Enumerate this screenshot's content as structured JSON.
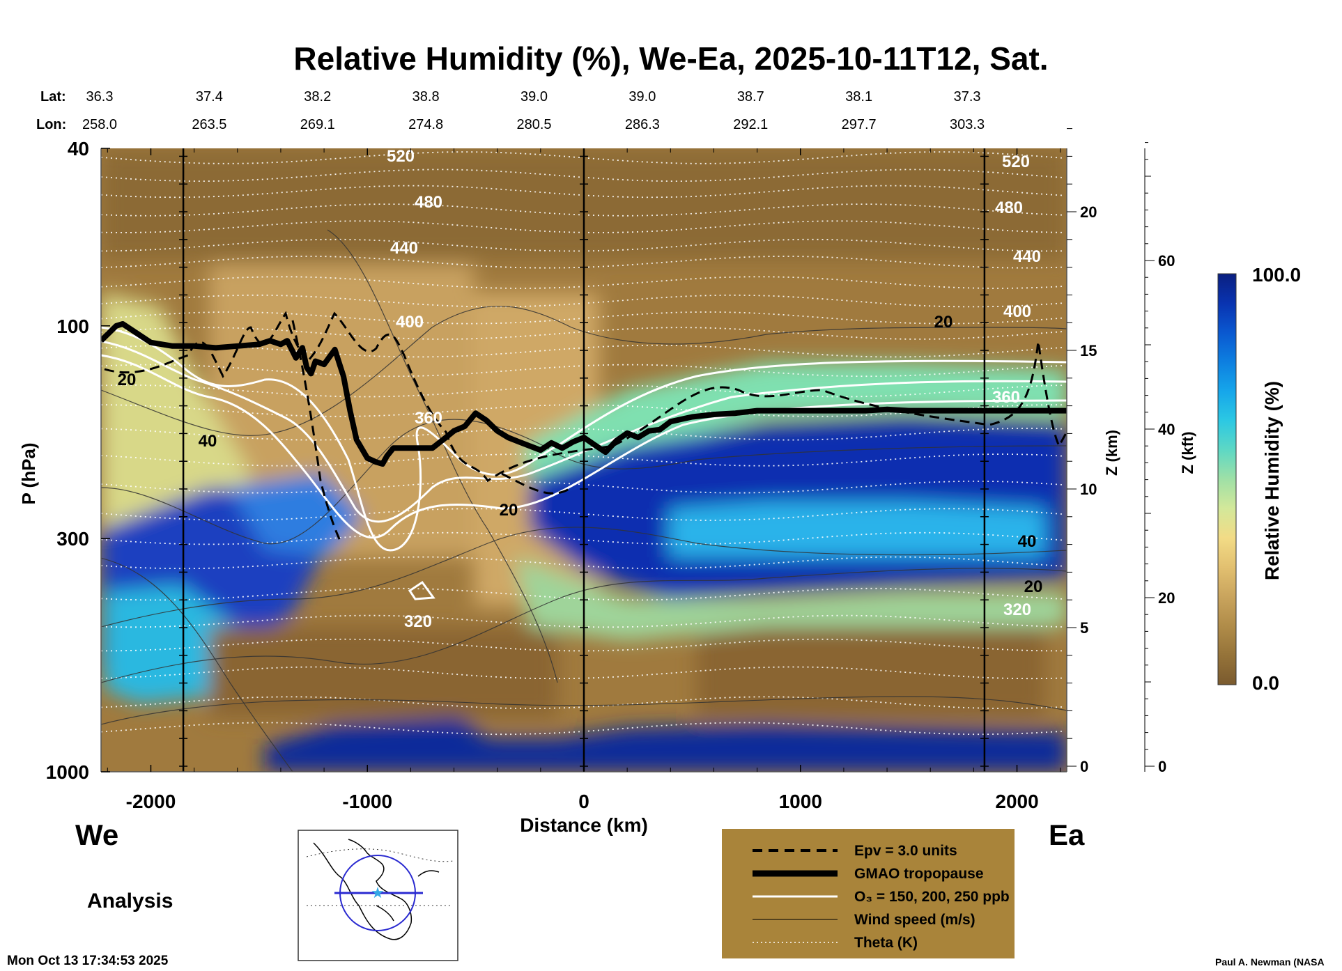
{
  "chart_data": {
    "type": "heatmap",
    "title": "Relative Humidity (%), We-Ea, 2025-10-11T12, Sat.",
    "xlabel": "Distance (km)",
    "ylabel": "P (hPa)",
    "y2label": "Z (km)",
    "y3label": "Z (kft)",
    "xlim": [
      -2230,
      2230
    ],
    "ylim_pressure": [
      1000,
      40
    ],
    "x_ticks": [
      -2000,
      -1000,
      0,
      1000,
      2000
    ],
    "x_tick_labels": [
      "-2000",
      "-1000",
      "0",
      "1000",
      "2000"
    ],
    "p_ticks": [
      1000,
      300,
      100,
      40
    ],
    "p_tick_labels": [
      "1000",
      "300",
      "100",
      "40"
    ],
    "zkm_ticks": [
      0,
      5,
      10,
      15,
      20
    ],
    "zkm_tick_labels": [
      "0",
      "5",
      "10",
      "15",
      "20"
    ],
    "zkft_ticks": [
      0,
      20,
      40,
      60
    ],
    "zkft_tick_labels": [
      "0",
      "20",
      "40",
      "60"
    ],
    "lat_label": "Lat:",
    "lon_label": "Lon:",
    "lat": [
      "36.3",
      "37.4",
      "38.2",
      "38.8",
      "39.0",
      "39.0",
      "38.7",
      "38.1",
      "37.3"
    ],
    "lon": [
      "258.0",
      "263.5",
      "269.1",
      "274.8",
      "280.5",
      "286.3",
      "292.1",
      "297.7",
      "303.3"
    ],
    "latlon_x_km": [
      -2230,
      -1730,
      -1230,
      -730,
      -230,
      270,
      770,
      1270,
      1770
    ],
    "vertical_lines_km": [
      -1850,
      0,
      1850
    ],
    "west_label": "We",
    "east_label": "Ea",
    "colorbar": {
      "title": "Relative Humidity (%)",
      "min": 0.0,
      "max": 100.0,
      "min_label": "0.0",
      "max_label": "100.0",
      "colors": [
        "#7a5a2e",
        "#957339",
        "#b08c49",
        "#c9a45d",
        "#e2c070",
        "#f2db86",
        "#d3e89a",
        "#9fe0a6",
        "#5ed8c4",
        "#2cc8e3",
        "#16a6ea",
        "#0d7fe0",
        "#0a58d0",
        "#0933b0",
        "#0a1f80"
      ]
    },
    "series": [
      {
        "name": "Epv = 3.0 units",
        "style": "dashed"
      },
      {
        "name": "GMAO tropopause",
        "style": "thick"
      },
      {
        "name": "O₃ = 150, 200, 250 ppb",
        "style": "white"
      },
      {
        "name": "Wind speed (m/s)",
        "style": "thin"
      },
      {
        "name": "Theta (K)",
        "style": "dotted"
      }
    ],
    "tropopause": {
      "x": [
        -2230,
        -2160,
        -2130,
        -2000,
        -1900,
        -1800,
        -1700,
        -1600,
        -1500,
        -1450,
        -1400,
        -1370,
        -1330,
        -1300,
        -1280,
        -1260,
        -1240,
        -1200,
        -1150,
        -1110,
        -1080,
        -1050,
        -1000,
        -960,
        -930,
        -910,
        -880,
        -850,
        -800,
        -700,
        -650,
        -600,
        -550,
        -500,
        -450,
        -400,
        -350,
        -300,
        -250,
        -200,
        -150,
        -100,
        -50,
        0,
        50,
        100,
        150,
        200,
        250,
        300,
        350,
        400,
        450,
        500,
        600,
        700,
        800,
        900,
        1000,
        1100,
        1200,
        1300,
        1400,
        1500,
        1600,
        1700,
        1800,
        1900,
        2000,
        2100,
        2150,
        2230
      ],
      "p": [
        108,
        100,
        99,
        109,
        111,
        111,
        112,
        111,
        110,
        108,
        110,
        108,
        118,
        112,
        124,
        128,
        120,
        122,
        113,
        130,
        155,
        180,
        198,
        202,
        204,
        196,
        188,
        188,
        188,
        188,
        180,
        172,
        168,
        157,
        163,
        172,
        178,
        182,
        186,
        190,
        183,
        188,
        182,
        178,
        185,
        192,
        181,
        174,
        178,
        172,
        171,
        164,
        162,
        160,
        158,
        157,
        155,
        155,
        155,
        155,
        155,
        155,
        154,
        155,
        155,
        155,
        155,
        155,
        155,
        155,
        155,
        155
      ]
    },
    "theta_levels": [
      {
        "label": "520",
        "p": 42
      },
      {
        "label": "480",
        "p": 52
      },
      {
        "label": "440",
        "p": 70
      },
      {
        "label": "400",
        "p": 103
      },
      {
        "label": "360",
        "p": 155
      },
      {
        "label": "320",
        "p": 400
      }
    ],
    "wind_labels": [
      "20",
      "40",
      "20",
      "20",
      "40",
      "20"
    ]
  },
  "footer": {
    "mode": "Analysis",
    "timestamp": "Mon Oct 13 17:34:53 2025",
    "credit": "Paul A. Newman (NASA"
  },
  "legend": {
    "background": "#a9843a"
  }
}
